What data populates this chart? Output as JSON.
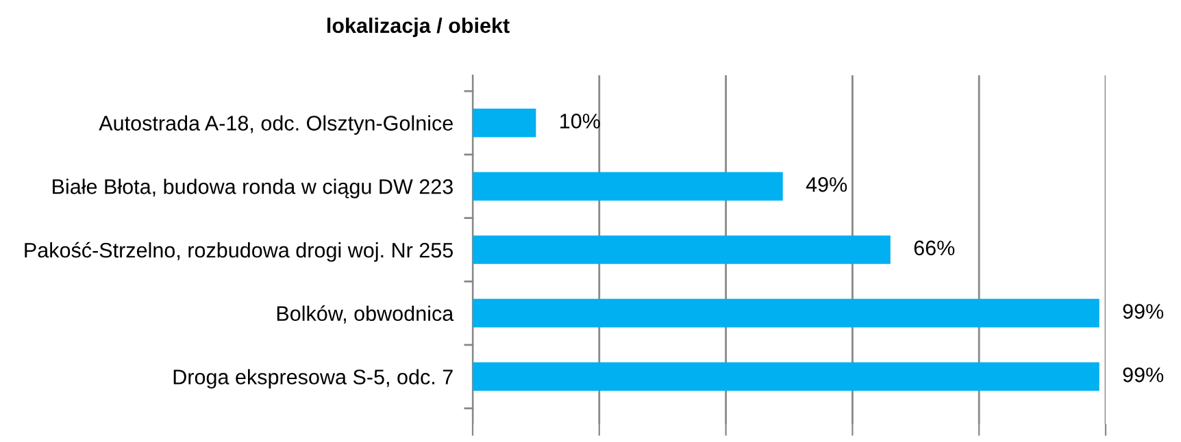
{
  "chart_data": {
    "type": "bar",
    "orientation": "horizontal",
    "ylabel": "lokalizacja / obiekt",
    "categories": [
      "Autostrada A-18, odc. Olsztyn-Golnice",
      "Białe Błota, budowa ronda w ciągu DW 223",
      "Pakość-Strzelno, rozbudowa drogi woj. Nr 255",
      "Bolków, obwodnica",
      "Droga ekspresowa S-5, odc. 7"
    ],
    "values": [
      10,
      49,
      66,
      99,
      99
    ],
    "value_labels": [
      "10%",
      "49%",
      "66%",
      "99%",
      "99%"
    ],
    "color": "#00b0f0",
    "xlim": [
      0,
      100
    ],
    "xticks": [
      {
        "value": 0,
        "label": null
      },
      {
        "value": 20,
        "label": null
      },
      {
        "value": 40,
        "label": null
      },
      {
        "value": 60,
        "label": null
      },
      {
        "value": 80,
        "label": null
      },
      {
        "value": 100,
        "label": null
      }
    ],
    "grid": "x",
    "tick_labels": "y",
    "legend": false
  }
}
